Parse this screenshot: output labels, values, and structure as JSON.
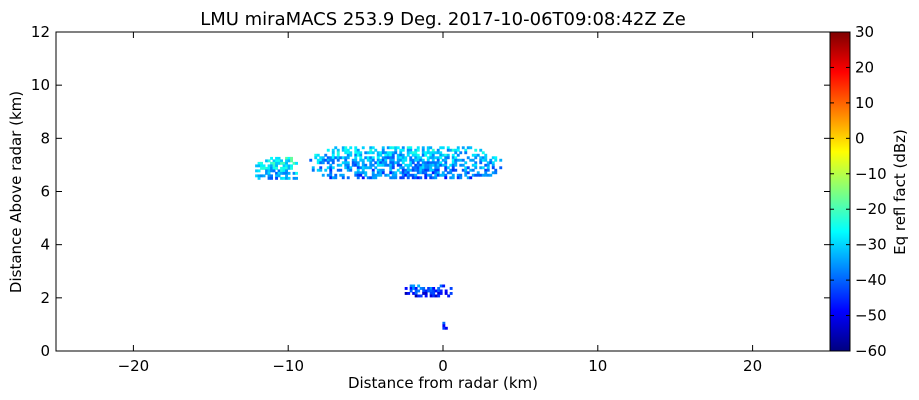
{
  "chart_data": {
    "type": "heatmap",
    "title": "LMU miraMACS 253.9 Deg. 2017-10-06T09:08:42Z  Ze",
    "xlabel": "Distance from radar (km)",
    "ylabel": "Distance Above radar  (km)",
    "xlim": [
      -25,
      25
    ],
    "ylim": [
      0,
      12
    ],
    "xticks": [
      -20,
      -10,
      0,
      10,
      20
    ],
    "xtick_labels": [
      "−20",
      "−10",
      "0",
      "10",
      "20"
    ],
    "yticks": [
      0,
      2,
      4,
      6,
      8,
      10,
      12
    ],
    "ytick_labels": [
      "0",
      "2",
      "4",
      "6",
      "8",
      "10",
      "12"
    ],
    "grid": false,
    "colorbar": {
      "label": "Eq refl fact (dBz)",
      "colormap": "jet",
      "range": [
        -60,
        30
      ],
      "ticks": [
        30,
        20,
        10,
        0,
        -10,
        -20,
        -30,
        -40,
        -50,
        -60
      ],
      "tick_labels": [
        "30",
        "20",
        "10",
        "0",
        "−10",
        "−20",
        "−30",
        "−40",
        "−50",
        "−60"
      ]
    },
    "echo_regions": [
      {
        "x_range": [
          -12.3,
          -9.2
        ],
        "y_range": [
          6.5,
          7.3
        ],
        "dbz": -30
      },
      {
        "x_range": [
          -8.8,
          3.8
        ],
        "y_range": [
          6.5,
          7.7
        ],
        "dbz": -35
      },
      {
        "x_range": [
          -2.8,
          0.6
        ],
        "y_range": [
          2.1,
          2.5
        ],
        "dbz": -45
      },
      {
        "x_range": [
          -1.9,
          -1.7
        ],
        "y_range": [
          1.3,
          1.5
        ],
        "dbz": -45
      },
      {
        "x_range": [
          -0.2,
          0.2
        ],
        "y_range": [
          0.9,
          1.1
        ],
        "dbz": -45
      }
    ]
  }
}
